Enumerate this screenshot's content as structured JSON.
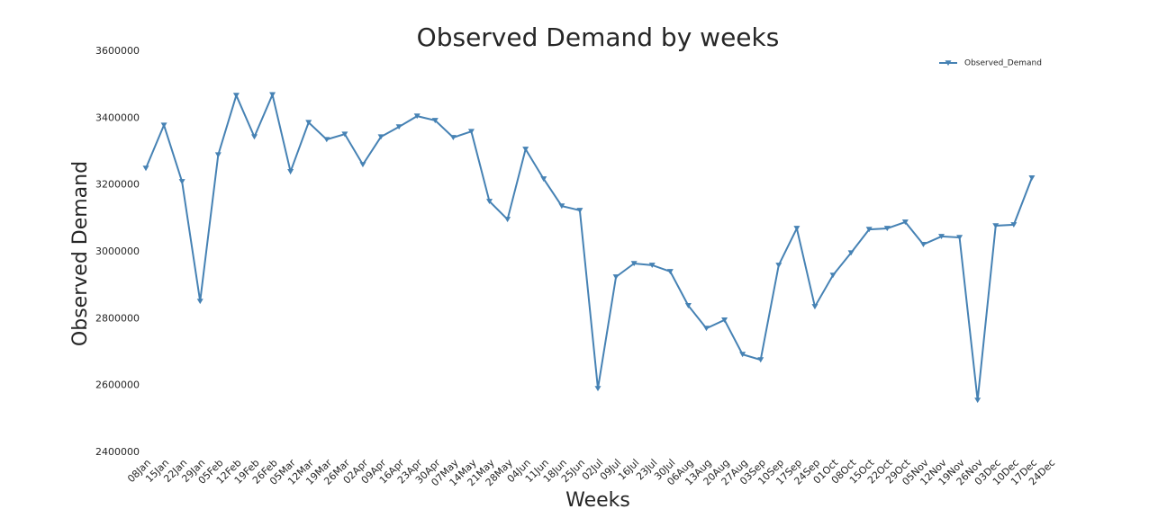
{
  "chart_data": {
    "type": "line",
    "title": "Observed Demand by weeks",
    "x_label": "Weeks",
    "y_label": "Observed Demand",
    "categories": [
      "08Jan",
      "15Jan",
      "22Jan",
      "29Jan",
      "05Feb",
      "12Feb",
      "19Feb",
      "26Feb",
      "05Mar",
      "12Mar",
      "19Mar",
      "26Mar",
      "02Apr",
      "09Apr",
      "16Apr",
      "23Apr",
      "30Apr",
      "07May",
      "14May",
      "21May",
      "28May",
      "04Jun",
      "11Jun",
      "18Jun",
      "25Jun",
      "02Jul",
      "09Jul",
      "16Jul",
      "23Jul",
      "30Jul",
      "06Aug",
      "13Aug",
      "20Aug",
      "27Aug",
      "03Sep",
      "10Sep",
      "17Sep",
      "24Sep",
      "01Oct",
      "08Oct",
      "15Oct",
      "22Oct",
      "29Oct",
      "05Nov",
      "12Nov",
      "19Nov",
      "26Nov",
      "03Dec",
      "10Dec",
      "17Dec",
      "24Dec"
    ],
    "series": [
      {
        "name": "Observed_Demand",
        "color": "#4682b4",
        "marker": "triangle-down",
        "values": [
          3250000,
          3379000,
          3210000,
          2852000,
          3290000,
          3468000,
          3344000,
          3470000,
          3240000,
          3387000,
          3336000,
          3352000,
          3261000,
          3344000,
          3374000,
          3406000,
          3393000,
          3342000,
          3360000,
          3151000,
          3097000,
          3307000,
          3218000,
          3137000,
          3124000,
          2591000,
          2925000,
          2965000,
          2960000,
          2941000,
          2839000,
          2771000,
          2796000,
          2693000,
          2677000,
          2960000,
          3070000,
          2836000,
          2930000,
          2997000,
          3067000,
          3070000,
          3089000,
          3022000,
          3046000,
          3043000,
          2556000,
          3078000,
          3081000,
          3221000,
          null
        ]
      }
    ],
    "ylim": [
      2400000,
      3600000
    ],
    "yticks": [
      2400000,
      2600000,
      2800000,
      3000000,
      3200000,
      3400000,
      3600000
    ],
    "grid": false,
    "legend": "upper right"
  }
}
